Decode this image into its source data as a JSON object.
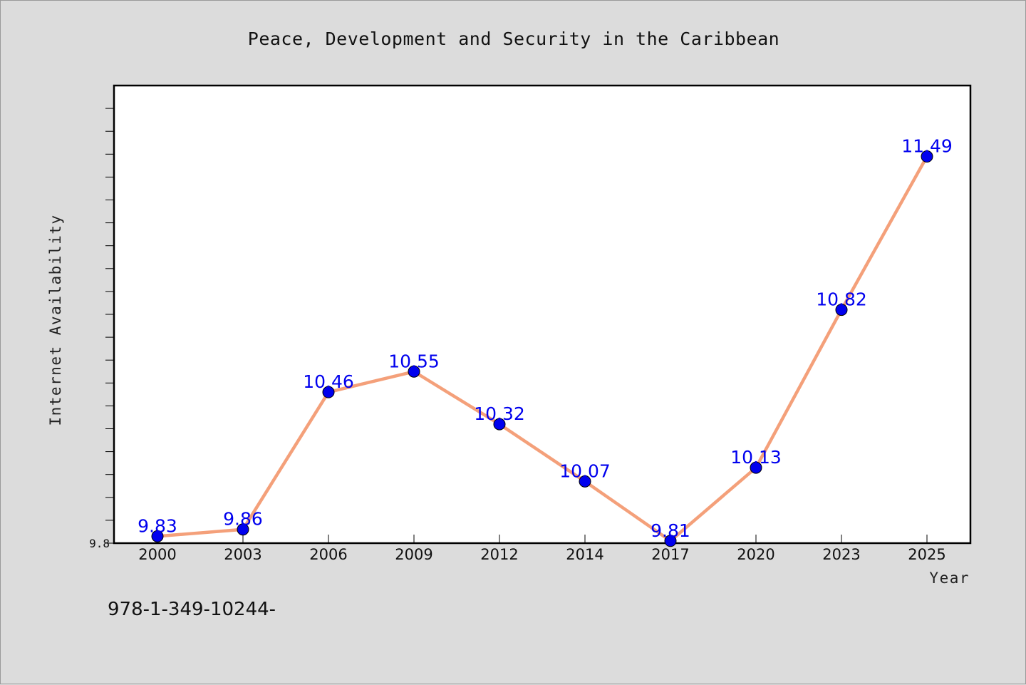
{
  "chart_data": {
    "type": "line",
    "title": "Peace, Development and Security in the Caribbean",
    "xlabel": "Year",
    "ylabel": "Internet Availability",
    "categories": [
      "2000",
      "2003",
      "2006",
      "2009",
      "2012",
      "2014",
      "2017",
      "2020",
      "2023",
      "2025"
    ],
    "series": [
      {
        "values": [
          9.83,
          9.86,
          10.46,
          10.55,
          10.32,
          10.07,
          9.81,
          10.13,
          10.82,
          11.49
        ],
        "color": "#f4a07a",
        "marker_color": "#0000ee"
      }
    ],
    "data_labels": [
      "9.83",
      "9.86",
      "10.46",
      "10.55",
      "10.32",
      "10.07",
      "9.81",
      "10.13",
      "10.82",
      "11.49"
    ],
    "ytick_labels": [
      "9.8"
    ],
    "ylim": [
      9.8,
      11.8
    ],
    "grid": false,
    "legend": false
  },
  "footer_text": "978-1-349-10244-"
}
